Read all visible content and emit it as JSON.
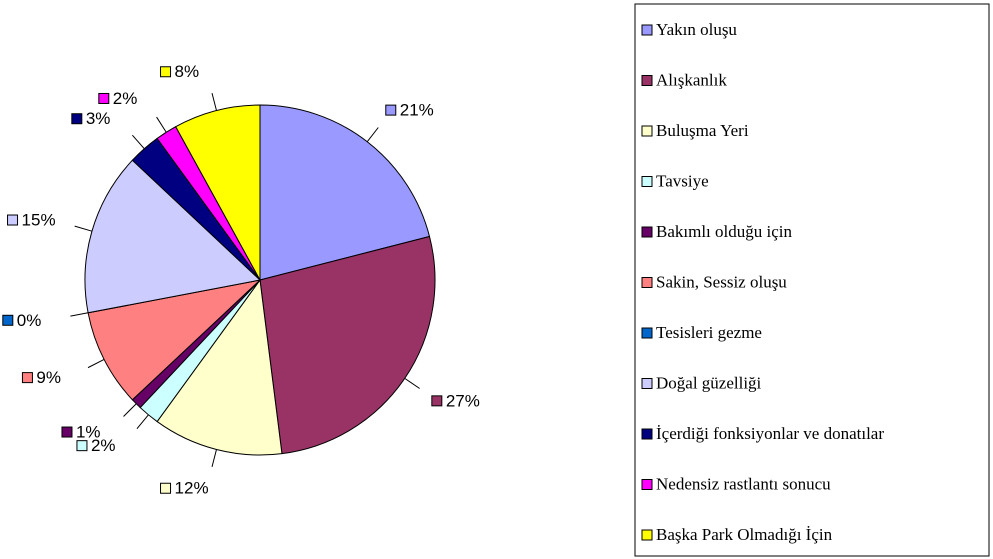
{
  "chart_data": {
    "type": "pie",
    "categories": [
      "Yakın oluşu",
      "Alışkanlık",
      "Buluşma Yeri",
      "Tavsiye",
      "Bakımlı olduğu için",
      "Sakin, Sessiz oluşu",
      "Tesisleri gezme",
      "Doğal güzelliği",
      "İçerdiği fonksiyonlar ve donatılar",
      "Nedensiz rastlantı sonucu",
      "Başka Park Olmadığı İçin"
    ],
    "values": [
      21,
      27,
      12,
      2,
      1,
      9,
      0,
      15,
      3,
      2,
      8
    ],
    "value_labels": [
      "21%",
      "27%",
      "12%",
      "2%",
      "1%",
      "9%",
      "0%",
      "15%",
      "3%",
      "2%",
      "8%"
    ],
    "colors": [
      "#9999ff",
      "#993366",
      "#ffffcc",
      "#ccffff",
      "#660066",
      "#ff8080",
      "#0066cc",
      "#ccccff",
      "#000080",
      "#ff00ff",
      "#ffff00"
    ],
    "legend": "right"
  }
}
